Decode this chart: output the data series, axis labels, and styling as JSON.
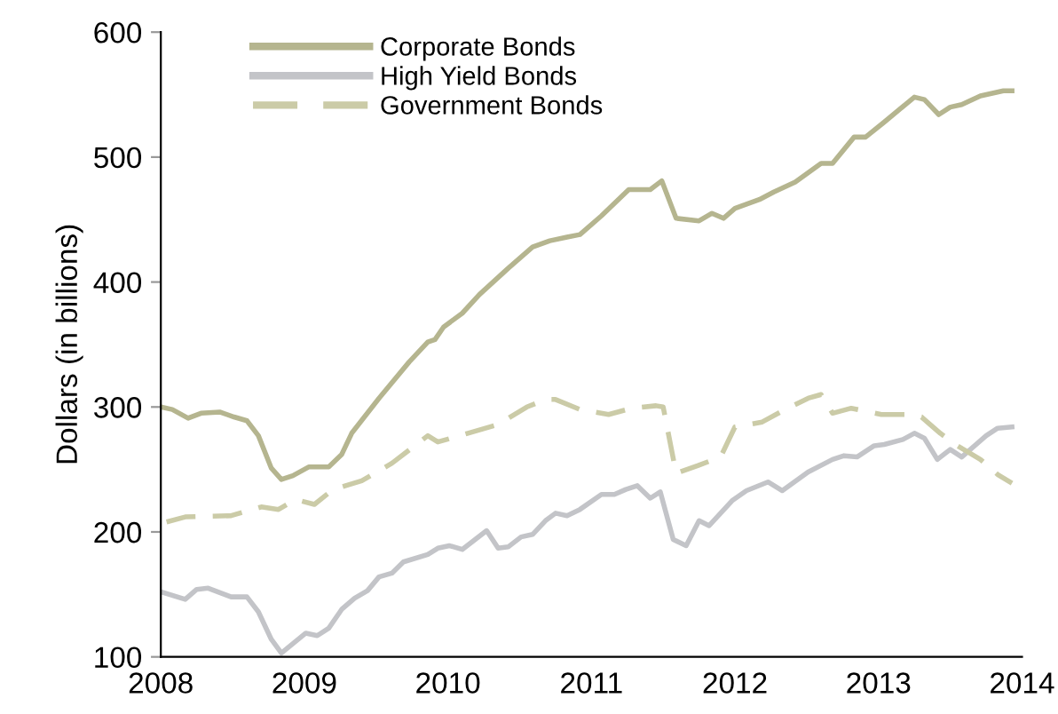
{
  "chart_data": {
    "type": "line",
    "ylabel": "Dollars (in billions)",
    "xlim": [
      2008,
      2014
    ],
    "xticks": [
      2008,
      2009,
      2010,
      2011,
      2012,
      2013,
      2014
    ],
    "ylim": [
      100,
      600
    ],
    "yticks": [
      100,
      200,
      300,
      400,
      500,
      600
    ],
    "grid": false,
    "legend": "top left",
    "marker": "none",
    "series": [
      {
        "name": "Corporate Bonds",
        "color": "#b5b58f",
        "line_style": "solid",
        "x": [
          2008.0,
          2008.08,
          2008.19,
          2008.28,
          2008.41,
          2008.51,
          2008.6,
          2008.68,
          2008.77,
          2008.84,
          2008.92,
          2009.03,
          2009.17,
          2009.26,
          2009.33,
          2009.52,
          2009.73,
          2009.86,
          2009.91,
          2009.97,
          2010.1,
          2010.22,
          2010.42,
          2010.59,
          2010.71,
          2010.83,
          2010.92,
          2011.07,
          2011.26,
          2011.41,
          2011.49,
          2011.59,
          2011.75,
          2011.84,
          2011.92,
          2012.0,
          2012.17,
          2012.27,
          2012.42,
          2012.6,
          2012.68,
          2012.83,
          2012.91,
          2013.04,
          2013.25,
          2013.32,
          2013.42,
          2013.5,
          2013.58,
          2013.71,
          2013.87,
          2013.93
        ],
        "values": [
          300,
          298,
          291,
          295,
          296,
          292,
          289,
          277,
          251,
          242,
          245,
          252,
          252,
          262,
          279,
          307,
          336,
          352,
          354,
          364,
          375,
          390,
          411,
          428,
          433,
          436,
          438,
          453,
          474,
          474,
          481,
          451,
          449,
          455,
          451,
          459,
          466,
          472,
          480,
          495,
          495,
          516,
          516,
          528,
          548,
          546,
          534,
          540,
          542,
          549,
          553,
          553
        ]
      },
      {
        "name": "High Yield Bonds",
        "color": "#c3c4c8",
        "line_style": "solid",
        "x": [
          2008.0,
          2008.17,
          2008.25,
          2008.33,
          2008.49,
          2008.6,
          2008.68,
          2008.77,
          2008.84,
          2009.01,
          2009.09,
          2009.17,
          2009.26,
          2009.35,
          2009.44,
          2009.52,
          2009.61,
          2009.69,
          2009.86,
          2009.93,
          2010.01,
          2010.1,
          2010.27,
          2010.35,
          2010.42,
          2010.51,
          2010.59,
          2010.68,
          2010.75,
          2010.83,
          2010.92,
          2011.07,
          2011.16,
          2011.24,
          2011.32,
          2011.41,
          2011.48,
          2011.57,
          2011.66,
          2011.75,
          2011.82,
          2011.98,
          2012.08,
          2012.23,
          2012.33,
          2012.51,
          2012.68,
          2012.76,
          2012.85,
          2012.97,
          2013.04,
          2013.17,
          2013.25,
          2013.32,
          2013.41,
          2013.5,
          2013.58,
          2013.75,
          2013.83,
          2013.93
        ],
        "values": [
          152,
          146,
          154,
          155,
          148,
          148,
          136,
          114,
          103,
          119,
          117,
          123,
          138,
          147,
          153,
          164,
          167,
          176,
          182,
          187,
          189,
          186,
          201,
          187,
          188,
          196,
          198,
          209,
          215,
          213,
          218,
          230,
          230,
          234,
          237,
          227,
          232,
          194,
          189,
          209,
          205,
          225,
          233,
          240,
          233,
          248,
          258,
          261,
          260,
          269,
          270,
          274,
          279,
          275,
          258,
          266,
          260,
          277,
          283,
          284
        ]
      },
      {
        "name": "Government Bonds",
        "color": "#cbcba7",
        "line_style": "dashed",
        "x": [
          2008.04,
          2008.17,
          2008.49,
          2008.7,
          2008.82,
          2008.94,
          2009.07,
          2009.2,
          2009.4,
          2009.61,
          2009.86,
          2009.93,
          2010.14,
          2010.35,
          2010.55,
          2010.68,
          2010.75,
          2010.92,
          2011.12,
          2011.28,
          2011.45,
          2011.5,
          2011.59,
          2011.74,
          2011.9,
          2012.0,
          2012.19,
          2012.35,
          2012.51,
          2012.6,
          2012.68,
          2012.81,
          2013.02,
          2013.22,
          2013.3,
          2013.43,
          2013.55,
          2013.71,
          2013.83,
          2013.93
        ],
        "values": [
          208,
          212,
          213,
          220,
          218,
          226,
          222,
          234,
          241,
          255,
          277,
          272,
          279,
          286,
          300,
          306,
          306,
          298,
          294,
          299,
          301,
          300,
          247,
          253,
          260,
          284,
          288,
          298,
          307,
          310,
          295,
          299,
          294,
          294,
          292,
          279,
          269,
          258,
          246,
          239
        ]
      }
    ]
  }
}
